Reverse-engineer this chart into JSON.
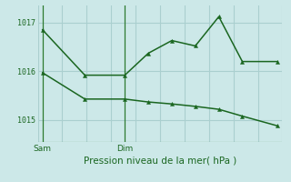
{
  "xlabel": "Pression niveau de la mer( hPa )",
  "bg_color": "#cce8e8",
  "grid_color": "#aacfcf",
  "line_color": "#1a6620",
  "sep_color": "#2d7a30",
  "ylim": [
    1014.55,
    1017.35
  ],
  "yticks": [
    1015,
    1016,
    1017
  ],
  "xlim": [
    -0.2,
    10.2
  ],
  "x_sam": 0.0,
  "x_dim": 3.5,
  "line1_x": [
    0,
    1.8,
    3.5,
    4.5,
    5.5,
    6.5,
    7.5,
    8.5,
    10.0
  ],
  "line1_y": [
    1016.85,
    1015.92,
    1015.92,
    1016.37,
    1016.63,
    1016.52,
    1017.12,
    1016.2,
    1016.2
  ],
  "line2_x": [
    0,
    1.8,
    3.5,
    4.5,
    5.5,
    6.5,
    7.5,
    8.5,
    10.0
  ],
  "line2_y": [
    1015.97,
    1015.43,
    1015.43,
    1015.37,
    1015.33,
    1015.28,
    1015.22,
    1015.08,
    1014.88
  ],
  "sam_label": "Sam",
  "dim_label": "Dim",
  "markersize": 3.0,
  "linewidth": 1.1,
  "ytick_fontsize": 6.0,
  "xtick_fontsize": 6.5,
  "label_fontsize": 7.5,
  "n_vgrid": 11
}
